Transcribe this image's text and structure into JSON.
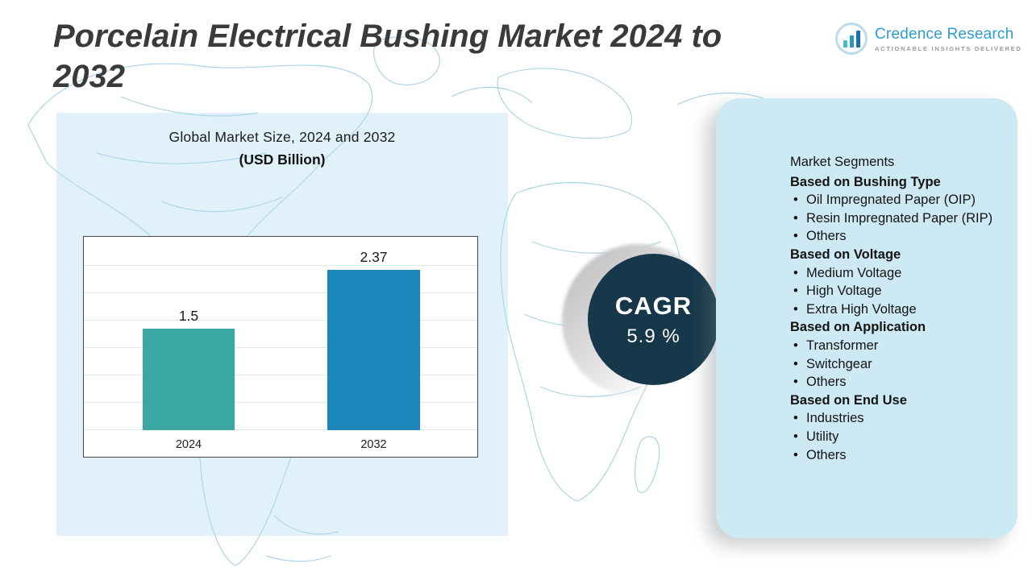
{
  "title": "Porcelain Electrical Bushing Market 2024 to 2032",
  "brand": {
    "name": "Credence Research",
    "tagline": "Actionable Insights Delivered"
  },
  "chart_panel": {
    "title": "Global Market Size, 2024 and 2032",
    "subtitle": "(USD Billion)"
  },
  "chart_data": {
    "type": "bar",
    "categories": [
      "2024",
      "2032"
    ],
    "values": [
      1.5,
      2.37
    ],
    "value_labels": [
      "1.5",
      "2.37"
    ],
    "title": "Global Market Size, 2024 and 2032 (USD Billion)",
    "xlabel": "",
    "ylabel": "",
    "ylim": [
      0,
      2.5
    ],
    "grid": "horizontal",
    "legend": "none",
    "bar_colors": [
      "#3aa7a3",
      "#1c86ba"
    ]
  },
  "cagr": {
    "label": "CAGR",
    "value": "5.9 %"
  },
  "segments": {
    "heading": "Market Segments",
    "groups": [
      {
        "title": "Based on Bushing Type",
        "items": [
          "Oil Impregnated Paper (OIP)",
          "Resin Impregnated Paper (RIP)",
          "Others"
        ]
      },
      {
        "title": "Based on Voltage",
        "items": [
          "Medium Voltage",
          "High Voltage",
          "Extra High Voltage"
        ]
      },
      {
        "title": "Based on Application",
        "items": [
          "Transformer",
          "Switchgear",
          "Others"
        ]
      },
      {
        "title": "Based on End Use",
        "items": [
          "Industries",
          "Utility",
          "Others"
        ]
      }
    ]
  },
  "colors": {
    "panel_blue": "#cde9f4",
    "cagr_circle": "#16384a",
    "map_stroke": "#abd5e6",
    "brand_blue": "#2b9cd6"
  }
}
